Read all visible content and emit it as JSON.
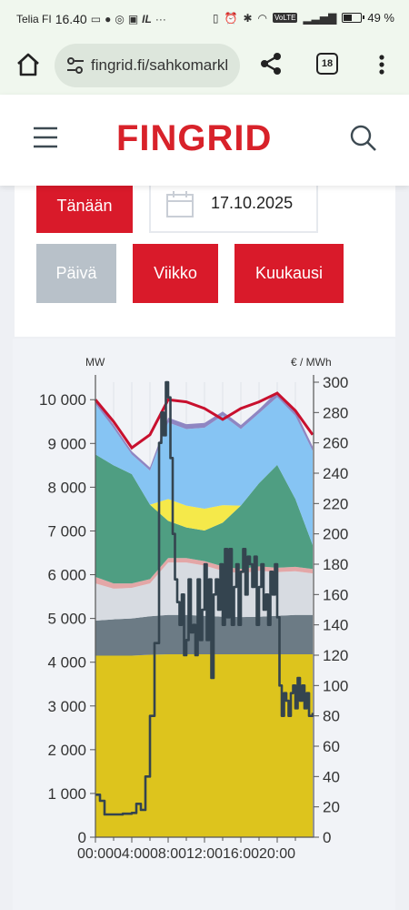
{
  "status_bar": {
    "carrier": "Telia FI",
    "time": "16.40",
    "notification_icons": [
      "message-icon",
      "facebook-icon",
      "instagram-icon",
      "calendar-icon",
      "app-icon",
      "more-icon"
    ],
    "system_icons": [
      "nfc-icon",
      "alarm-icon",
      "bluetooth-icon",
      "wifi-icon",
      "volte-icon",
      "signal-icon"
    ],
    "volte": "VoLTE",
    "battery": "49 %"
  },
  "browser": {
    "url": "fingrid.fi/sahkomarkl",
    "tab_count": "18"
  },
  "site": {
    "logo": "FINGRID"
  },
  "controls": {
    "today_label": "Tänään",
    "date_value": "17.10.2025",
    "period_tabs": [
      "Päivä",
      "Viikko",
      "Kuukausi"
    ],
    "active_period": "Päivä"
  },
  "chart_data": {
    "type": "area",
    "left_axis_unit": "MW",
    "right_axis_unit": "€ / MWh",
    "left_ticks": [
      "0",
      "1 000",
      "2 000",
      "3 000",
      "4 000",
      "5 000",
      "6 000",
      "7 000",
      "8 000",
      "9 000",
      "10 000"
    ],
    "right_ticks": [
      "0",
      "20",
      "40",
      "60",
      "80",
      "100",
      "120",
      "140",
      "160",
      "180",
      "200",
      "220",
      "240",
      "260",
      "280",
      "300"
    ],
    "x_ticks": [
      "00:00",
      "04:00",
      "08:00",
      "12:00",
      "16:00",
      "20:00"
    ],
    "x": [
      0,
      2,
      4,
      6,
      8,
      10,
      12,
      14,
      16,
      18,
      20,
      22,
      23.9
    ],
    "ylim_left": [
      0,
      10400
    ],
    "ylim_right": [
      0,
      300
    ],
    "series_colors": [
      "#ddc41d",
      "#6c7b85",
      "#d7dbe1",
      "#e3a7a7",
      "#4f9e82",
      "#f5e94a",
      "#86c4f3",
      "#8f86c2"
    ],
    "stack": [
      {
        "color": "#ddc41d",
        "values": [
          4150,
          4150,
          4150,
          4170,
          4180,
          4180,
          4180,
          4180,
          4180,
          4180,
          4180,
          4180,
          4180
        ]
      },
      {
        "color": "#6c7b85",
        "values": [
          800,
          830,
          850,
          880,
          900,
          900,
          880,
          860,
          850,
          860,
          880,
          900,
          900
        ]
      },
      {
        "color": "#d7dbe1",
        "values": [
          850,
          700,
          700,
          750,
          1200,
          1200,
          1150,
          1050,
          1000,
          1050,
          1000,
          1000,
          950
        ]
      },
      {
        "color": "#e3a7a7",
        "values": [
          150,
          120,
          100,
          100,
          100,
          100,
          100,
          100,
          100,
          100,
          100,
          100,
          100
        ]
      },
      {
        "color": "#4f9e82",
        "values": [
          2800,
          2700,
          2500,
          1700,
          850,
          700,
          700,
          1000,
          1450,
          1900,
          2350,
          1550,
          550
        ]
      },
      {
        "color": "#f5e94a",
        "values": [
          0,
          0,
          0,
          0,
          500,
          500,
          500,
          400,
          0,
          0,
          0,
          0,
          0
        ]
      },
      {
        "color": "#86c4f3",
        "values": [
          1150,
          850,
          450,
          780,
          1750,
          1750,
          1850,
          2050,
          1750,
          1600,
          1550,
          1900,
          2150
        ]
      },
      {
        "color": "#8f86c2",
        "values": [
          100,
          80,
          70,
          70,
          110,
          110,
          110,
          90,
          90,
          90,
          130,
          120,
          100
        ]
      }
    ],
    "consumption": {
      "color": "#c8102e",
      "values": [
        10000,
        9500,
        8900,
        9200,
        10000,
        9950,
        9800,
        9550,
        9800,
        9950,
        10150,
        9750,
        9200
      ]
    },
    "price": {
      "color": "#34444f",
      "x": [
        0,
        0.5,
        1,
        2,
        3,
        4,
        4.5,
        5,
        5.5,
        6,
        6.5,
        7,
        7.25,
        7.5,
        7.75,
        8,
        8.25,
        8.5,
        8.75,
        9,
        9.25,
        9.5,
        9.75,
        10,
        10.25,
        10.5,
        10.75,
        11,
        11.25,
        11.5,
        11.75,
        12,
        12.25,
        12.5,
        12.75,
        13,
        13.25,
        13.5,
        13.75,
        14,
        14.25,
        14.5,
        14.75,
        15,
        15.25,
        15.5,
        15.75,
        16,
        16.25,
        16.5,
        16.75,
        17,
        17.25,
        17.5,
        17.75,
        18,
        18.25,
        18.5,
        18.75,
        19,
        19.25,
        19.5,
        19.75,
        20,
        20.25,
        20.5,
        20.75,
        21,
        21.25,
        21.5,
        21.75,
        22,
        22.25,
        22.5,
        22.75,
        23,
        23.25,
        23.5,
        23.9
      ],
      "values": [
        28,
        24,
        15,
        15,
        15.5,
        16,
        22,
        18,
        40,
        80,
        128,
        260,
        280,
        265,
        300,
        290,
        250,
        200,
        170,
        155,
        140,
        160,
        120,
        130,
        170,
        135,
        140,
        120,
        170,
        130,
        150,
        180,
        130,
        170,
        105,
        160,
        170,
        150,
        180,
        140,
        190,
        145,
        190,
        140,
        165,
        180,
        140,
        175,
        190,
        160,
        185,
        180,
        165,
        185,
        140,
        165,
        180,
        150,
        160,
        140,
        175,
        160,
        180,
        145,
        100,
        80,
        95,
        90,
        80,
        95,
        100,
        85,
        105,
        90,
        100,
        85,
        95,
        80,
        82
      ]
    }
  }
}
